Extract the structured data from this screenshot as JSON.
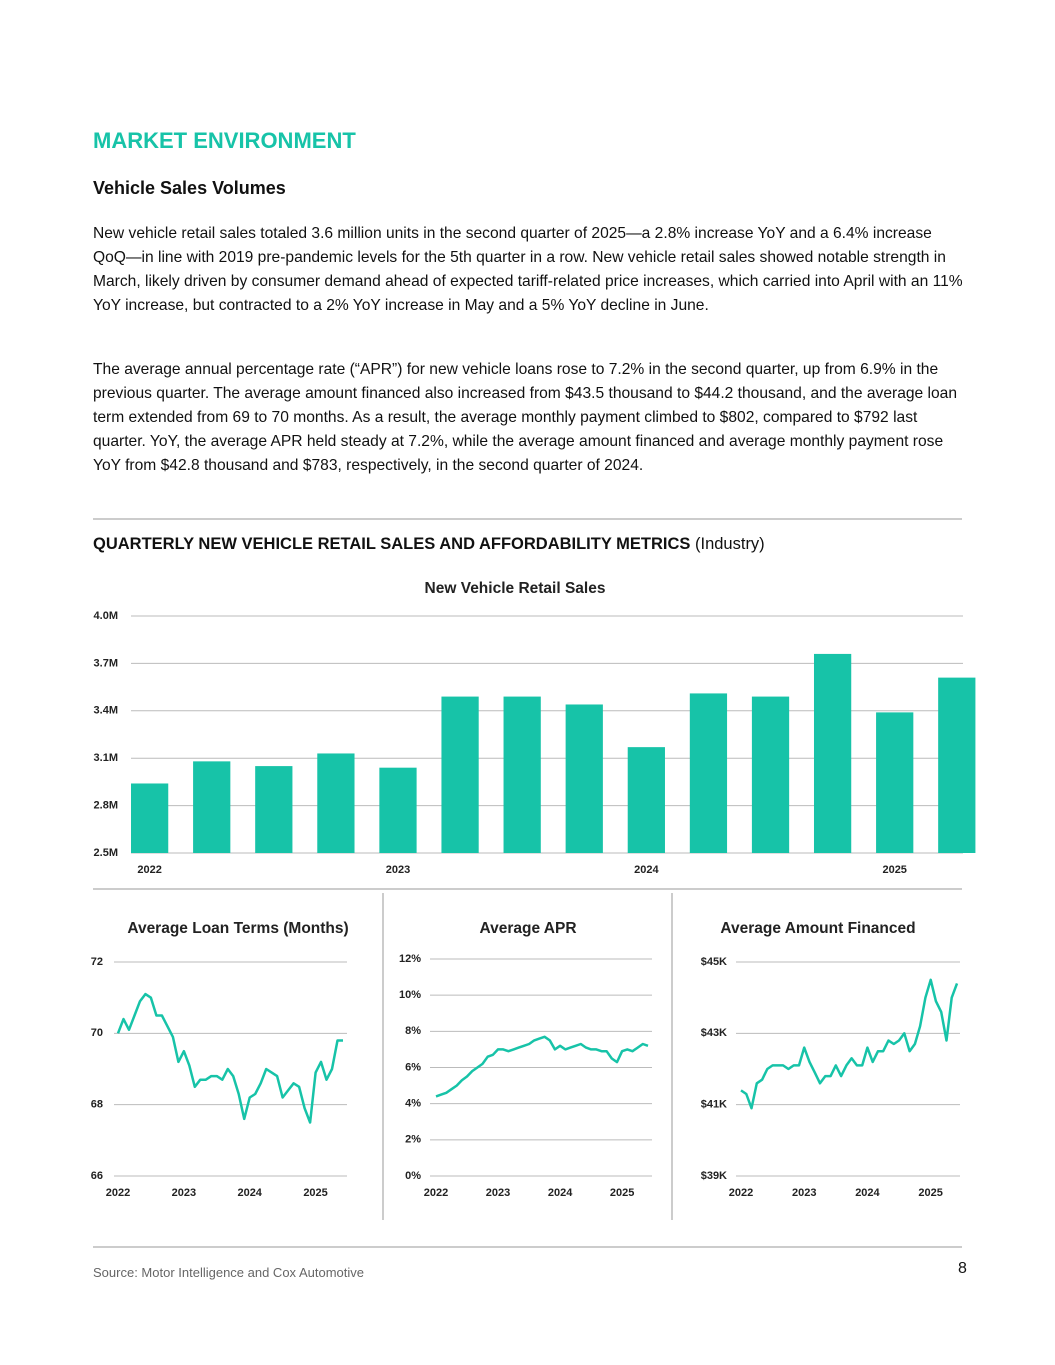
{
  "heading": "MARKET ENVIRONMENT",
  "subheading": "Vehicle Sales Volumes",
  "paragraphs": [
    "New vehicle retail sales totaled 3.6 million units in the second quarter of 2025—a 2.8% increase YoY and a 6.4% increase QoQ—in line with 2019 pre-pandemic levels for the 5th quarter in a row. New vehicle retail sales showed notable strength in March, likely driven by consumer demand ahead of expected tariff-related price increases, which carried into April with an 11% YoY increase, but contracted to a 2% YoY increase in May and a 5% YoY decline in June.",
    "The average annual percentage rate (“APR”) for new vehicle loans rose to 7.2% in the second quarter, up from 6.9% in the previous quarter. The average amount financed also increased from $43.5 thousand to $44.2 thousand, and the average loan term extended from 69 to 70 months. As a result, the average monthly payment climbed to $802, compared to $792 last quarter. YoY, the average APR held steady at 7.2%, while the average amount financed and average monthly payment rose YoY from $42.8 thousand and $783, respectively, in the second quarter of 2024."
  ],
  "figure_title": "QUARTERLY NEW VEHICLE RETAIL SALES AND AFFORDABILITY METRICS",
  "figure_note": "(Industry)",
  "source": "Source: Motor Intelligence and Cox Automotive",
  "page_number": "8",
  "chart_data": [
    {
      "type": "bar",
      "title": "New Vehicle Retail Sales",
      "color": "#17c3a8",
      "grid": true,
      "categories": [
        "2022",
        null,
        null,
        null,
        "2023",
        null,
        null,
        null,
        "2024",
        null,
        null,
        null,
        "2025",
        null
      ],
      "values": [
        2940000,
        3080000,
        3050000,
        3130000,
        3040000,
        3490000,
        3490000,
        3440000,
        3170000,
        3510000,
        3490000,
        3760000,
        3390000,
        3610000
      ],
      "ylim": [
        2500000,
        4000000
      ],
      "yticks": [
        {
          "value": 2500000,
          "label": "2.5M"
        },
        {
          "value": 2800000,
          "label": "2.8M"
        },
        {
          "value": 3100000,
          "label": "3.1M"
        },
        {
          "value": 3400000,
          "label": "3.4M"
        },
        {
          "value": 3700000,
          "label": "3.7M"
        },
        {
          "value": 4000000,
          "label": "4.0M"
        }
      ]
    },
    {
      "type": "line",
      "title": "Average Loan Terms (Months)",
      "color": "#17c3a8",
      "grid": true,
      "categories": [
        "2022",
        null,
        null,
        null,
        null,
        null,
        null,
        null,
        null,
        null,
        null,
        null,
        "2023",
        null,
        null,
        null,
        null,
        null,
        null,
        null,
        null,
        null,
        null,
        null,
        "2024",
        null,
        null,
        null,
        null,
        null,
        null,
        null,
        null,
        null,
        null,
        null,
        "2025",
        null,
        null,
        null,
        null,
        null
      ],
      "values": [
        70.0,
        70.4,
        70.1,
        70.5,
        70.9,
        71.1,
        71.0,
        70.5,
        70.5,
        70.2,
        69.9,
        69.2,
        69.5,
        69.1,
        68.5,
        68.7,
        68.7,
        68.8,
        68.8,
        68.7,
        69.0,
        68.8,
        68.3,
        67.6,
        68.2,
        68.3,
        68.6,
        69.0,
        68.9,
        68.8,
        68.2,
        68.4,
        68.6,
        68.5,
        67.9,
        67.5,
        68.9,
        69.2,
        68.7,
        69.0,
        69.8,
        69.8
      ],
      "ylim": [
        66,
        72
      ],
      "yticks": [
        66,
        68,
        70,
        72
      ]
    },
    {
      "type": "line",
      "title": "Average APR",
      "color": "#17c3a8",
      "grid": true,
      "categories": [
        "2022",
        null,
        null,
        null,
        null,
        null,
        null,
        null,
        null,
        null,
        null,
        null,
        "2023",
        null,
        null,
        null,
        null,
        null,
        null,
        null,
        null,
        null,
        null,
        null,
        "2024",
        null,
        null,
        null,
        null,
        null,
        null,
        null,
        null,
        null,
        null,
        null,
        "2025",
        null,
        null,
        null,
        null,
        null
      ],
      "values": [
        4.4,
        4.5,
        4.6,
        4.8,
        5.0,
        5.3,
        5.5,
        5.8,
        6.0,
        6.2,
        6.6,
        6.7,
        7.0,
        7.0,
        6.9,
        7.0,
        7.1,
        7.2,
        7.3,
        7.5,
        7.6,
        7.7,
        7.5,
        7.0,
        7.2,
        7.0,
        7.1,
        7.2,
        7.3,
        7.1,
        7.0,
        7.0,
        6.9,
        6.9,
        6.5,
        6.3,
        6.9,
        7.0,
        6.9,
        7.1,
        7.3,
        7.2
      ],
      "ylim": [
        0,
        12
      ],
      "yticks": [
        {
          "value": 0,
          "label": "0%"
        },
        {
          "value": 2,
          "label": "2%"
        },
        {
          "value": 4,
          "label": "4%"
        },
        {
          "value": 6,
          "label": "6%"
        },
        {
          "value": 8,
          "label": "8%"
        },
        {
          "value": 10,
          "label": "10%"
        },
        {
          "value": 12,
          "label": "12%"
        }
      ]
    },
    {
      "type": "line",
      "title": "Average Amount Financed",
      "color": "#17c3a8",
      "grid": true,
      "categories": [
        "2022",
        null,
        null,
        null,
        null,
        null,
        null,
        null,
        null,
        null,
        null,
        null,
        "2023",
        null,
        null,
        null,
        null,
        null,
        null,
        null,
        null,
        null,
        null,
        null,
        "2024",
        null,
        null,
        null,
        null,
        null,
        null,
        null,
        null,
        null,
        null,
        null,
        "2025",
        null,
        null,
        null,
        null,
        null
      ],
      "values": [
        41400,
        41300,
        40900,
        41600,
        41700,
        42000,
        42100,
        42100,
        42100,
        42000,
        42100,
        42100,
        42600,
        42200,
        41900,
        41600,
        41800,
        41800,
        42100,
        41800,
        42100,
        42300,
        42100,
        42100,
        42600,
        42200,
        42500,
        42500,
        42800,
        42700,
        42800,
        43000,
        42500,
        42700,
        43200,
        44000,
        44500,
        43900,
        43600,
        42800,
        44000,
        44400
      ],
      "ylim": [
        39000,
        45000
      ],
      "yticks": [
        {
          "value": 39000,
          "label": "$39K"
        },
        {
          "value": 41000,
          "label": "$41K"
        },
        {
          "value": 43000,
          "label": "$43K"
        },
        {
          "value": 45000,
          "label": "$45K"
        }
      ]
    }
  ]
}
